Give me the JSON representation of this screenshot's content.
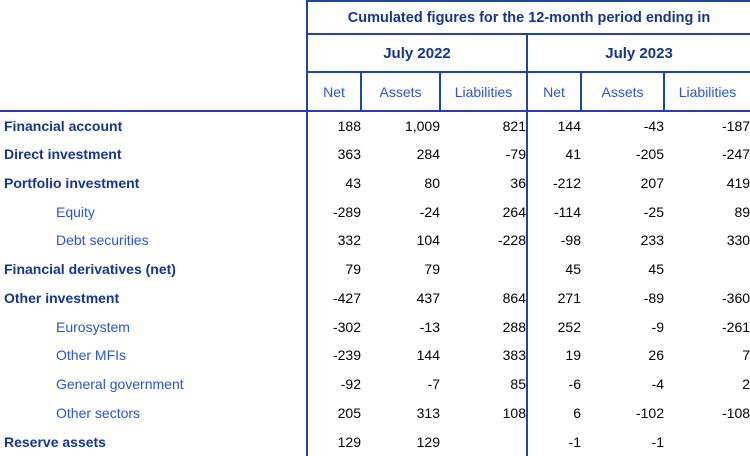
{
  "header": {
    "title": "Cumulated figures for the 12-month period ending in",
    "periods": [
      "July 2022",
      "July 2023"
    ],
    "measures": [
      "Net",
      "Assets",
      "Liabilities"
    ]
  },
  "rows": [
    {
      "label": "Financial account",
      "indent": false,
      "values": [
        "188",
        "1,009",
        "821",
        "144",
        "-43",
        "-187"
      ]
    },
    {
      "label": "Direct investment",
      "indent": false,
      "values": [
        "363",
        "284",
        "-79",
        "41",
        "-205",
        "-247"
      ]
    },
    {
      "label": "Portfolio investment",
      "indent": false,
      "values": [
        "43",
        "80",
        "36",
        "-212",
        "207",
        "419"
      ]
    },
    {
      "label": "Equity",
      "indent": true,
      "values": [
        "-289",
        "-24",
        "264",
        "-114",
        "-25",
        "89"
      ]
    },
    {
      "label": "Debt securities",
      "indent": true,
      "values": [
        "332",
        "104",
        "-228",
        "-98",
        "233",
        "330"
      ]
    },
    {
      "label": "Financial derivatives (net)",
      "indent": false,
      "values": [
        "79",
        "79",
        "",
        "45",
        "45",
        ""
      ]
    },
    {
      "label": "Other investment",
      "indent": false,
      "values": [
        "-427",
        "437",
        "864",
        "271",
        "-89",
        "-360"
      ]
    },
    {
      "label": "Eurosystem",
      "indent": true,
      "values": [
        "-302",
        "-13",
        "288",
        "252",
        "-9",
        "-261"
      ]
    },
    {
      "label": "Other MFIs",
      "indent": true,
      "values": [
        "-239",
        "144",
        "383",
        "19",
        "26",
        "7"
      ]
    },
    {
      "label": "General government",
      "indent": true,
      "values": [
        "-92",
        "-7",
        "85",
        "-6",
        "-4",
        "2"
      ]
    },
    {
      "label": "Other sectors",
      "indent": true,
      "values": [
        "205",
        "313",
        "108",
        "6",
        "-102",
        "-108"
      ]
    },
    {
      "label": "Reserve assets",
      "indent": false,
      "values": [
        "129",
        "129",
        "",
        "-1",
        "-1",
        ""
      ]
    }
  ],
  "colors": {
    "heading": "#16368E",
    "subheading": "#2B55CE",
    "number": "#000000",
    "line": "#2244A9",
    "background": "#FFFFFF"
  }
}
